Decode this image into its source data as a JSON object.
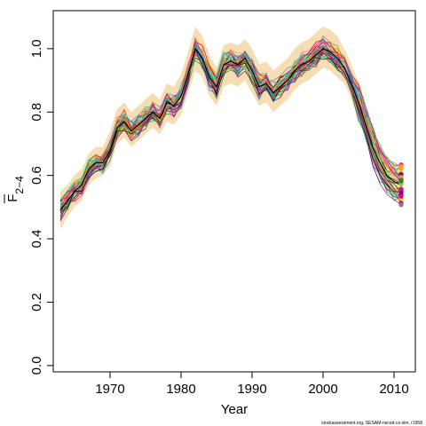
{
  "chart_data": {
    "type": "line",
    "xlabel": "Year",
    "ylabel": {
      "main": "F",
      "subscript": "2−4"
    },
    "credit": "stockassessment.org, SESAM-nscod-cs-sim, r1958",
    "xlim": [
      1962,
      2013
    ],
    "ylim": [
      -0.02,
      1.12
    ],
    "x_ticks": [
      1970,
      1980,
      1990,
      2000,
      2010
    ],
    "y_ticks": [
      0.0,
      0.2,
      0.4,
      0.6,
      0.8,
      1.0
    ],
    "y_tick_labels": [
      "0.0",
      "0.2",
      "0.4",
      "0.6",
      "0.8",
      "1.0"
    ],
    "band_color": "#f5deb3",
    "x": [
      1963,
      1964,
      1965,
      1966,
      1967,
      1968,
      1969,
      1970,
      1971,
      1972,
      1973,
      1974,
      1975,
      1976,
      1977,
      1978,
      1979,
      1980,
      1981,
      1982,
      1983,
      1984,
      1985,
      1986,
      1987,
      1988,
      1989,
      1990,
      1991,
      1992,
      1993,
      1994,
      1995,
      1996,
      1997,
      1998,
      1999,
      2000,
      2001,
      2002,
      2003,
      2004,
      2005,
      2006,
      2007,
      2008,
      2009,
      2010,
      2011
    ],
    "central": [
      0.49,
      0.52,
      0.55,
      0.57,
      0.62,
      0.64,
      0.64,
      0.68,
      0.75,
      0.77,
      0.74,
      0.76,
      0.78,
      0.8,
      0.78,
      0.83,
      0.82,
      0.85,
      0.92,
      1.0,
      0.97,
      0.91,
      0.88,
      0.95,
      0.96,
      0.95,
      0.97,
      0.93,
      0.88,
      0.89,
      0.86,
      0.88,
      0.9,
      0.93,
      0.95,
      0.96,
      0.98,
      1.0,
      0.99,
      0.97,
      0.94,
      0.89,
      0.83,
      0.76,
      0.69,
      0.64,
      0.6,
      0.58,
      0.57
    ],
    "lower": [
      0.43,
      0.47,
      0.5,
      0.52,
      0.57,
      0.59,
      0.6,
      0.63,
      0.7,
      0.72,
      0.69,
      0.71,
      0.73,
      0.75,
      0.73,
      0.77,
      0.76,
      0.79,
      0.86,
      0.93,
      0.91,
      0.85,
      0.82,
      0.88,
      0.89,
      0.88,
      0.9,
      0.86,
      0.82,
      0.83,
      0.8,
      0.82,
      0.84,
      0.87,
      0.89,
      0.9,
      0.92,
      0.94,
      0.93,
      0.91,
      0.89,
      0.84,
      0.78,
      0.71,
      0.64,
      0.59,
      0.55,
      0.53,
      0.51
    ],
    "upper": [
      0.55,
      0.57,
      0.6,
      0.62,
      0.67,
      0.69,
      0.69,
      0.74,
      0.81,
      0.83,
      0.8,
      0.82,
      0.84,
      0.86,
      0.84,
      0.89,
      0.88,
      0.92,
      0.99,
      1.07,
      1.04,
      0.98,
      0.94,
      1.01,
      1.02,
      1.01,
      1.03,
      1.0,
      0.95,
      0.96,
      0.93,
      0.95,
      0.97,
      1.0,
      1.02,
      1.03,
      1.05,
      1.07,
      1.06,
      1.04,
      1.0,
      0.95,
      0.89,
      0.82,
      0.75,
      0.7,
      0.66,
      0.64,
      0.63
    ],
    "n_simulated_series": 40,
    "endpoint_colors": [
      "#ff1493",
      "#000000",
      "#ffd700",
      "#8b008b",
      "#9acd32",
      "#ff69b4",
      "#c71585",
      "#228b22",
      "#808080",
      "#ffa500"
    ]
  }
}
